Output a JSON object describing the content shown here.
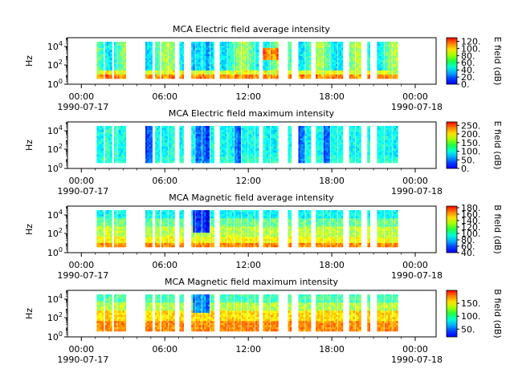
{
  "chart_data": [
    {
      "type": "heatmap",
      "title": "MCA  Electric field average intensity",
      "ylabel": "Hz",
      "y_ticks": [
        {
          "base": "10",
          "exp": "0"
        },
        {
          "base": "10",
          "exp": "2"
        },
        {
          "base": "10",
          "exp": "4"
        }
      ],
      "x_ticks": [
        "00:00",
        "06:00",
        "12:00",
        "18:00",
        "00:00"
      ],
      "x_dates": [
        "1990-07-17",
        "1990-07-18"
      ],
      "colorbar_label": "E field (dB)",
      "colorbar_ticks": [
        "0.",
        "20.",
        "40.",
        "60.",
        "80.",
        "100.",
        "120."
      ],
      "colorbar_range": [
        0,
        130
      ],
      "style": "elec_avg"
    },
    {
      "type": "heatmap",
      "title": "MCA  Electric field maximum intensity",
      "ylabel": "Hz",
      "y_ticks": [
        {
          "base": "10",
          "exp": "0"
        },
        {
          "base": "10",
          "exp": "2"
        },
        {
          "base": "10",
          "exp": "4"
        }
      ],
      "x_ticks": [
        "00:00",
        "06:00",
        "12:00",
        "18:00",
        "00:00"
      ],
      "x_dates": [
        "1990-07-17",
        "1990-07-18"
      ],
      "colorbar_label": "E field (dB)",
      "colorbar_ticks": [
        "0.",
        "50.",
        "100.",
        "150.",
        "200.",
        "250."
      ],
      "colorbar_range": [
        0,
        270
      ],
      "style": "elec_max"
    },
    {
      "type": "heatmap",
      "title": "MCA  Magnetic field average intensity",
      "ylabel": "Hz",
      "y_ticks": [
        {
          "base": "10",
          "exp": "0"
        },
        {
          "base": "10",
          "exp": "2"
        },
        {
          "base": "10",
          "exp": "4"
        }
      ],
      "x_ticks": [
        "00:00",
        "06:00",
        "12:00",
        "18:00",
        "00:00"
      ],
      "x_dates": [
        "1990-07-17",
        "1990-07-18"
      ],
      "colorbar_label": "B field (dB)",
      "colorbar_ticks": [
        "40.",
        "60.",
        "80.",
        "100.",
        "120.",
        "140.",
        "160.",
        "180."
      ],
      "colorbar_range": [
        40,
        185
      ],
      "style": "mag_avg"
    },
    {
      "type": "heatmap",
      "title": "MCA  Magnetic field maximum intensity",
      "ylabel": "Hz",
      "y_ticks": [
        {
          "base": "10",
          "exp": "0"
        },
        {
          "base": "10",
          "exp": "2"
        },
        {
          "base": "10",
          "exp": "4"
        }
      ],
      "x_ticks": [
        "00:00",
        "06:00",
        "12:00",
        "18:00",
        "00:00"
      ],
      "x_dates": [
        "1990-07-17",
        "1990-07-18"
      ],
      "colorbar_label": "B field (dB)",
      "colorbar_ticks": [
        "50.",
        "100.",
        "150."
      ],
      "colorbar_range": [
        20,
        200
      ],
      "style": "mag_max"
    }
  ],
  "data_segments_hours": [
    [
      1.1,
      1.6
    ],
    [
      1.7,
      2.2
    ],
    [
      2.35,
      2.55
    ],
    [
      2.6,
      3.2
    ],
    [
      4.6,
      5.1
    ],
    [
      5.3,
      5.65
    ],
    [
      5.75,
      6.2
    ],
    [
      6.25,
      6.7
    ],
    [
      7.05,
      7.35
    ],
    [
      7.9,
      8.15
    ],
    [
      8.2,
      8.65
    ],
    [
      8.7,
      9.2
    ],
    [
      9.25,
      9.55
    ],
    [
      9.95,
      10.45
    ],
    [
      10.5,
      10.95
    ],
    [
      11.0,
      11.45
    ],
    [
      11.5,
      11.95
    ],
    [
      12.0,
      12.45
    ],
    [
      12.5,
      12.75
    ],
    [
      13.05,
      13.55
    ],
    [
      13.6,
      14.15
    ],
    [
      14.85,
      15.1
    ],
    [
      15.6,
      16.05
    ],
    [
      16.1,
      16.5
    ],
    [
      16.85,
      17.35
    ],
    [
      17.4,
      17.85
    ],
    [
      17.9,
      18.4
    ],
    [
      18.45,
      18.8
    ],
    [
      19.25,
      19.65
    ],
    [
      19.7,
      20.1
    ],
    [
      20.55,
      20.75
    ],
    [
      21.25,
      21.75
    ],
    [
      21.8,
      22.3
    ],
    [
      22.35,
      22.75
    ]
  ]
}
